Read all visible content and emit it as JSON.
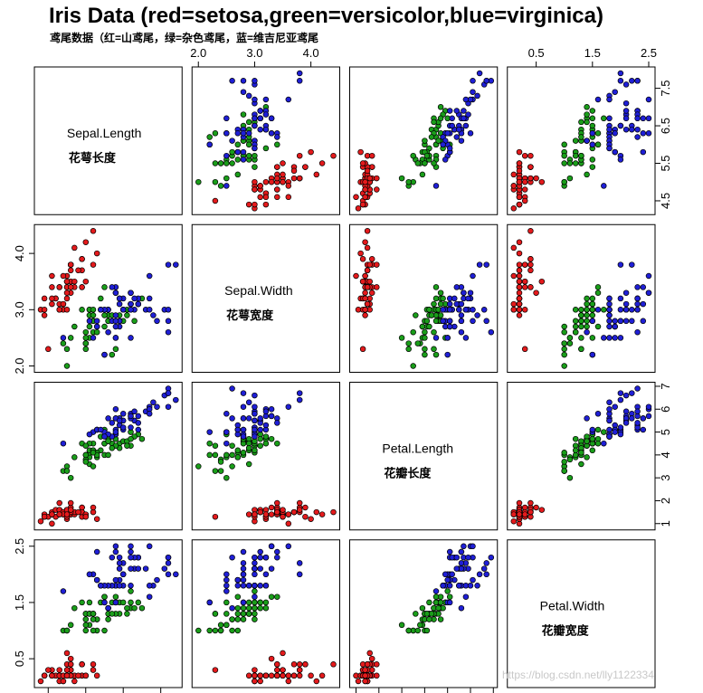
{
  "title": "Iris Data (red=setosa,green=versicolor,blue=virginica)",
  "subtitle": "鸢尾数据（红=山鸢尾，绿=杂色鸢尾，蓝=维吉尼亚鸢尾",
  "watermark": "https://blog.csdn.net/lly1122334",
  "chart_data": {
    "type": "scatter-matrix",
    "variables": [
      {
        "name": "Sepal.Length",
        "label": "花萼长度",
        "range": [
          4.3,
          7.9
        ],
        "ticks": [
          "4.5",
          "5.5",
          "6.5",
          "7.5"
        ]
      },
      {
        "name": "Sepal.Width",
        "label": "花萼宽度",
        "range": [
          2.0,
          4.4
        ],
        "ticks": [
          "2.0",
          "3.0",
          "4.0"
        ]
      },
      {
        "name": "Petal.Length",
        "label": "花瓣长度",
        "range": [
          1.0,
          6.9
        ],
        "ticks": [
          "1",
          "2",
          "3",
          "4",
          "5",
          "6",
          "7"
        ]
      },
      {
        "name": "Petal.Width",
        "label": "花瓣宽度",
        "range": [
          0.1,
          2.5
        ],
        "ticks": [
          "0.5",
          "1.5",
          "2.5"
        ]
      }
    ],
    "species_colors": {
      "setosa": "#e41a1c",
      "versicolor": "#1a9e1a",
      "virginica": "#1f1fd6"
    },
    "point_stroke": "#000000",
    "columns": [
      "Sepal.Length",
      "Sepal.Width",
      "Petal.Length",
      "Petal.Width"
    ],
    "series": [
      {
        "species": "setosa",
        "rows": [
          [
            5.1,
            3.5,
            1.4,
            0.2
          ],
          [
            4.9,
            3.0,
            1.4,
            0.2
          ],
          [
            4.7,
            3.2,
            1.3,
            0.2
          ],
          [
            4.6,
            3.1,
            1.5,
            0.2
          ],
          [
            5.0,
            3.6,
            1.4,
            0.2
          ],
          [
            5.4,
            3.9,
            1.7,
            0.4
          ],
          [
            4.6,
            3.4,
            1.4,
            0.3
          ],
          [
            5.0,
            3.4,
            1.5,
            0.2
          ],
          [
            4.4,
            2.9,
            1.4,
            0.2
          ],
          [
            4.9,
            3.1,
            1.5,
            0.1
          ],
          [
            5.4,
            3.7,
            1.5,
            0.2
          ],
          [
            4.8,
            3.4,
            1.6,
            0.2
          ],
          [
            4.8,
            3.0,
            1.4,
            0.1
          ],
          [
            4.3,
            3.0,
            1.1,
            0.1
          ],
          [
            5.8,
            4.0,
            1.2,
            0.2
          ],
          [
            5.7,
            4.4,
            1.5,
            0.4
          ],
          [
            5.4,
            3.9,
            1.3,
            0.4
          ],
          [
            5.1,
            3.5,
            1.4,
            0.3
          ],
          [
            5.7,
            3.8,
            1.7,
            0.3
          ],
          [
            5.1,
            3.8,
            1.5,
            0.3
          ],
          [
            5.4,
            3.4,
            1.7,
            0.2
          ],
          [
            5.1,
            3.7,
            1.5,
            0.4
          ],
          [
            4.6,
            3.6,
            1.0,
            0.2
          ],
          [
            5.1,
            3.3,
            1.7,
            0.5
          ],
          [
            4.8,
            3.4,
            1.9,
            0.2
          ],
          [
            5.0,
            3.0,
            1.6,
            0.2
          ],
          [
            5.0,
            3.4,
            1.6,
            0.4
          ],
          [
            5.2,
            3.5,
            1.5,
            0.2
          ],
          [
            5.2,
            3.4,
            1.4,
            0.2
          ],
          [
            4.7,
            3.2,
            1.6,
            0.2
          ],
          [
            4.8,
            3.1,
            1.6,
            0.2
          ],
          [
            5.4,
            3.4,
            1.5,
            0.4
          ],
          [
            5.2,
            4.1,
            1.5,
            0.1
          ],
          [
            5.5,
            4.2,
            1.4,
            0.2
          ],
          [
            4.9,
            3.1,
            1.5,
            0.2
          ],
          [
            5.0,
            3.2,
            1.2,
            0.2
          ],
          [
            5.5,
            3.5,
            1.3,
            0.2
          ],
          [
            4.9,
            3.6,
            1.4,
            0.1
          ],
          [
            4.4,
            3.0,
            1.3,
            0.2
          ],
          [
            5.1,
            3.4,
            1.5,
            0.2
          ],
          [
            5.0,
            3.5,
            1.3,
            0.3
          ],
          [
            4.5,
            2.3,
            1.3,
            0.3
          ],
          [
            4.4,
            3.2,
            1.3,
            0.2
          ],
          [
            5.0,
            3.5,
            1.6,
            0.6
          ],
          [
            5.1,
            3.8,
            1.9,
            0.4
          ],
          [
            4.8,
            3.0,
            1.4,
            0.3
          ],
          [
            5.1,
            3.8,
            1.6,
            0.2
          ],
          [
            4.6,
            3.2,
            1.4,
            0.2
          ],
          [
            5.3,
            3.7,
            1.5,
            0.2
          ],
          [
            5.0,
            3.3,
            1.4,
            0.2
          ]
        ]
      },
      {
        "species": "versicolor",
        "rows": [
          [
            7.0,
            3.2,
            4.7,
            1.4
          ],
          [
            6.4,
            3.2,
            4.5,
            1.5
          ],
          [
            6.9,
            3.1,
            4.9,
            1.5
          ],
          [
            5.5,
            2.3,
            4.0,
            1.3
          ],
          [
            6.5,
            2.8,
            4.6,
            1.5
          ],
          [
            5.7,
            2.8,
            4.5,
            1.3
          ],
          [
            6.3,
            3.3,
            4.7,
            1.6
          ],
          [
            4.9,
            2.4,
            3.3,
            1.0
          ],
          [
            6.6,
            2.9,
            4.6,
            1.3
          ],
          [
            5.2,
            2.7,
            3.9,
            1.4
          ],
          [
            5.0,
            2.0,
            3.5,
            1.0
          ],
          [
            5.9,
            3.0,
            4.2,
            1.5
          ],
          [
            6.0,
            2.2,
            4.0,
            1.0
          ],
          [
            6.1,
            2.9,
            4.7,
            1.4
          ],
          [
            5.6,
            2.9,
            3.6,
            1.3
          ],
          [
            6.7,
            3.1,
            4.4,
            1.4
          ],
          [
            5.6,
            3.0,
            4.5,
            1.5
          ],
          [
            5.8,
            2.7,
            4.1,
            1.0
          ],
          [
            6.2,
            2.2,
            4.5,
            1.5
          ],
          [
            5.6,
            2.5,
            3.9,
            1.1
          ],
          [
            5.9,
            3.2,
            4.8,
            1.8
          ],
          [
            6.1,
            2.8,
            4.0,
            1.3
          ],
          [
            6.3,
            2.5,
            4.9,
            1.5
          ],
          [
            6.1,
            2.8,
            4.7,
            1.2
          ],
          [
            6.4,
            2.9,
            4.3,
            1.3
          ],
          [
            6.6,
            3.0,
            4.4,
            1.4
          ],
          [
            6.8,
            2.8,
            4.8,
            1.4
          ],
          [
            6.7,
            3.0,
            5.0,
            1.7
          ],
          [
            6.0,
            2.9,
            4.5,
            1.5
          ],
          [
            5.7,
            2.6,
            3.5,
            1.0
          ],
          [
            5.5,
            2.4,
            3.8,
            1.1
          ],
          [
            5.5,
            2.4,
            3.7,
            1.0
          ],
          [
            5.8,
            2.7,
            3.9,
            1.2
          ],
          [
            6.0,
            2.7,
            5.1,
            1.6
          ],
          [
            5.4,
            3.0,
            4.5,
            1.5
          ],
          [
            6.0,
            3.4,
            4.5,
            1.6
          ],
          [
            6.7,
            3.1,
            4.7,
            1.5
          ],
          [
            6.3,
            2.3,
            4.4,
            1.3
          ],
          [
            5.6,
            3.0,
            4.1,
            1.3
          ],
          [
            5.5,
            2.5,
            4.0,
            1.3
          ],
          [
            5.5,
            2.6,
            4.4,
            1.2
          ],
          [
            6.1,
            3.0,
            4.6,
            1.4
          ],
          [
            5.8,
            2.6,
            4.0,
            1.2
          ],
          [
            5.0,
            2.3,
            3.3,
            1.0
          ],
          [
            5.6,
            2.7,
            4.2,
            1.3
          ],
          [
            5.7,
            3.0,
            4.2,
            1.2
          ],
          [
            5.7,
            2.9,
            4.2,
            1.3
          ],
          [
            6.2,
            2.9,
            4.3,
            1.3
          ],
          [
            5.1,
            2.5,
            3.0,
            1.1
          ],
          [
            5.7,
            2.8,
            4.1,
            1.3
          ]
        ]
      },
      {
        "species": "virginica",
        "rows": [
          [
            6.3,
            3.3,
            6.0,
            2.5
          ],
          [
            5.8,
            2.7,
            5.1,
            1.9
          ],
          [
            7.1,
            3.0,
            5.9,
            2.1
          ],
          [
            6.3,
            2.9,
            5.6,
            1.8
          ],
          [
            6.5,
            3.0,
            5.8,
            2.2
          ],
          [
            7.6,
            3.0,
            6.6,
            2.1
          ],
          [
            4.9,
            2.5,
            4.5,
            1.7
          ],
          [
            7.3,
            2.9,
            6.3,
            1.8
          ],
          [
            6.7,
            2.5,
            5.8,
            1.8
          ],
          [
            7.2,
            3.6,
            6.1,
            2.5
          ],
          [
            6.5,
            3.2,
            5.1,
            2.0
          ],
          [
            6.4,
            2.7,
            5.3,
            1.9
          ],
          [
            6.8,
            3.0,
            5.5,
            2.1
          ],
          [
            5.7,
            2.5,
            5.0,
            2.0
          ],
          [
            5.8,
            2.8,
            5.1,
            2.4
          ],
          [
            6.4,
            3.2,
            5.3,
            2.3
          ],
          [
            6.5,
            3.0,
            5.5,
            1.8
          ],
          [
            7.7,
            3.8,
            6.7,
            2.2
          ],
          [
            7.7,
            2.6,
            6.9,
            2.3
          ],
          [
            6.0,
            2.2,
            5.0,
            1.5
          ],
          [
            6.9,
            3.2,
            5.7,
            2.3
          ],
          [
            5.6,
            2.8,
            4.9,
            2.0
          ],
          [
            7.7,
            2.8,
            6.7,
            2.0
          ],
          [
            6.3,
            2.7,
            4.9,
            1.8
          ],
          [
            6.7,
            3.3,
            5.7,
            2.1
          ],
          [
            7.2,
            3.2,
            6.0,
            1.8
          ],
          [
            6.2,
            2.8,
            4.8,
            1.8
          ],
          [
            6.1,
            3.0,
            4.9,
            1.8
          ],
          [
            6.4,
            2.8,
            5.6,
            2.1
          ],
          [
            7.2,
            3.0,
            5.8,
            1.6
          ],
          [
            7.4,
            2.8,
            6.1,
            1.9
          ],
          [
            7.9,
            3.8,
            6.4,
            2.0
          ],
          [
            6.4,
            2.8,
            5.6,
            2.2
          ],
          [
            6.3,
            2.8,
            5.1,
            1.5
          ],
          [
            6.1,
            2.6,
            5.6,
            1.4
          ],
          [
            7.7,
            3.0,
            6.1,
            2.3
          ],
          [
            6.3,
            3.4,
            5.6,
            2.4
          ],
          [
            6.4,
            3.1,
            5.5,
            1.8
          ],
          [
            6.0,
            3.0,
            4.8,
            1.8
          ],
          [
            6.9,
            3.1,
            5.4,
            2.1
          ],
          [
            6.7,
            3.1,
            5.6,
            2.4
          ],
          [
            6.9,
            3.1,
            5.1,
            2.3
          ],
          [
            5.8,
            2.7,
            5.1,
            1.9
          ],
          [
            6.8,
            3.2,
            5.9,
            2.3
          ],
          [
            6.7,
            3.3,
            5.7,
            2.5
          ],
          [
            6.7,
            3.0,
            5.2,
            2.3
          ],
          [
            6.3,
            2.5,
            5.0,
            1.9
          ],
          [
            6.5,
            3.0,
            5.2,
            2.0
          ],
          [
            6.2,
            3.4,
            5.4,
            2.3
          ],
          [
            5.9,
            3.0,
            5.1,
            1.8
          ]
        ]
      }
    ]
  }
}
